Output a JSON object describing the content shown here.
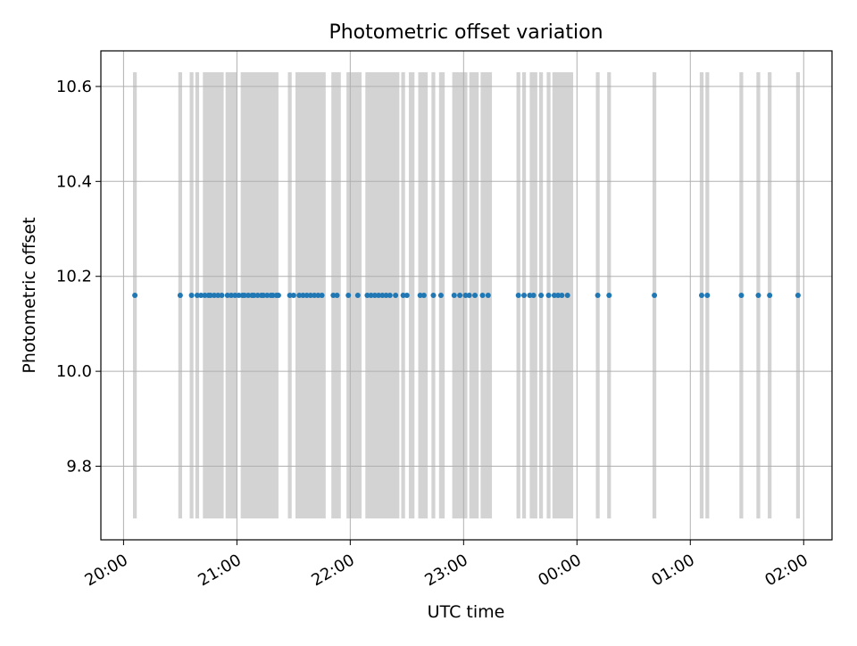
{
  "chart_data": {
    "type": "scatter",
    "title": "Photometric offset variation",
    "xlabel": "UTC time",
    "ylabel": "Photometric offset",
    "x_tick_labels": [
      "20:00",
      "21:00",
      "22:00",
      "23:00",
      "00:00",
      "01:00",
      "02:00"
    ],
    "y_tick_labels": [
      "9.8",
      "10.0",
      "10.2",
      "10.4",
      "10.6"
    ],
    "y_ticks": [
      9.8,
      10.0,
      10.2,
      10.4,
      10.6
    ],
    "xlim": [
      "19:48",
      "02:15"
    ],
    "ylim": [
      9.645,
      10.675
    ],
    "grid": true,
    "x_axis_start_date": "20:00",
    "series": [
      {
        "marker_color": "#1f77b4",
        "times": [
          "20:06",
          "20:30",
          "20:36",
          "20:39",
          "20:41",
          "20:43",
          "20:45",
          "20:46",
          "20:48",
          "20:50",
          "20:52",
          "20:55",
          "20:57",
          "20:59",
          "21:01",
          "21:03",
          "21:04",
          "21:06",
          "21:08",
          "21:09",
          "21:11",
          "21:13",
          "21:14",
          "21:16",
          "21:18",
          "21:19",
          "21:21",
          "21:22",
          "21:28",
          "21:30",
          "21:33",
          "21:35",
          "21:37",
          "21:39",
          "21:41",
          "21:43",
          "21:45",
          "21:51",
          "21:53",
          "21:59",
          "22:04",
          "22:09",
          "22:11",
          "22:13",
          "22:15",
          "22:17",
          "22:19",
          "22:21",
          "22:24",
          "22:28",
          "22:30",
          "22:37",
          "22:39",
          "22:44",
          "22:48",
          "22:55",
          "22:58",
          "23:01",
          "23:03",
          "23:06",
          "23:10",
          "23:13",
          "23:29",
          "23:32",
          "23:35",
          "23:37",
          "23:41",
          "23:45",
          "23:48",
          "23:50",
          "23:52",
          "23:55",
          "00:11",
          "00:17",
          "00:41",
          "01:06",
          "01:09",
          "01:27",
          "01:36",
          "01:42",
          "01:57"
        ],
        "y": [
          10.16,
          10.16,
          10.16,
          10.16,
          10.16,
          10.16,
          10.16,
          10.16,
          10.16,
          10.16,
          10.16,
          10.16,
          10.16,
          10.16,
          10.16,
          10.16,
          10.16,
          10.16,
          10.16,
          10.16,
          10.16,
          10.16,
          10.16,
          10.16,
          10.16,
          10.16,
          10.16,
          10.16,
          10.16,
          10.16,
          10.16,
          10.16,
          10.16,
          10.16,
          10.16,
          10.16,
          10.16,
          10.16,
          10.16,
          10.16,
          10.16,
          10.16,
          10.16,
          10.16,
          10.16,
          10.16,
          10.16,
          10.16,
          10.16,
          10.16,
          10.16,
          10.16,
          10.16,
          10.16,
          10.16,
          10.16,
          10.16,
          10.16,
          10.16,
          10.16,
          10.16,
          10.16,
          10.16,
          10.16,
          10.16,
          10.16,
          10.16,
          10.16,
          10.16,
          10.16,
          10.16,
          10.16,
          10.16,
          10.16,
          10.16,
          10.16,
          10.16,
          10.16,
          10.16,
          10.16,
          10.16
        ]
      }
    ],
    "shaded_intervals": {
      "color": "#d3d3d3",
      "y_range": [
        9.69,
        10.63
      ],
      "intervals": [
        [
          "20:05",
          "20:07"
        ],
        [
          "20:29",
          "20:31"
        ],
        [
          "20:35",
          "20:37"
        ],
        [
          "20:38",
          "20:40"
        ],
        [
          "20:42",
          "20:53"
        ],
        [
          "20:54",
          "21:00"
        ],
        [
          "21:02",
          "21:22"
        ],
        [
          "21:27",
          "21:29"
        ],
        [
          "21:31",
          "21:47"
        ],
        [
          "21:50",
          "21:55"
        ],
        [
          "21:58",
          "22:06"
        ],
        [
          "22:08",
          "22:26"
        ],
        [
          "22:27",
          "22:29"
        ],
        [
          "22:31",
          "22:34"
        ],
        [
          "22:36",
          "22:41"
        ],
        [
          "22:43",
          "22:45"
        ],
        [
          "22:47",
          "22:50"
        ],
        [
          "22:54",
          "23:02"
        ],
        [
          "23:03",
          "23:08"
        ],
        [
          "23:09",
          "23:15"
        ],
        [
          "23:28",
          "23:30"
        ],
        [
          "23:31",
          "23:33"
        ],
        [
          "23:35",
          "23:39"
        ],
        [
          "23:40",
          "23:42"
        ],
        [
          "23:44",
          "23:46"
        ],
        [
          "23:47",
          "23:58"
        ],
        [
          "00:10",
          "00:12"
        ],
        [
          "00:16",
          "00:18"
        ],
        [
          "00:40",
          "00:42"
        ],
        [
          "01:05",
          "01:07"
        ],
        [
          "01:08",
          "01:10"
        ],
        [
          "01:26",
          "01:28"
        ],
        [
          "01:35",
          "01:37"
        ],
        [
          "01:41",
          "01:43"
        ],
        [
          "01:56",
          "01:58"
        ]
      ]
    }
  }
}
